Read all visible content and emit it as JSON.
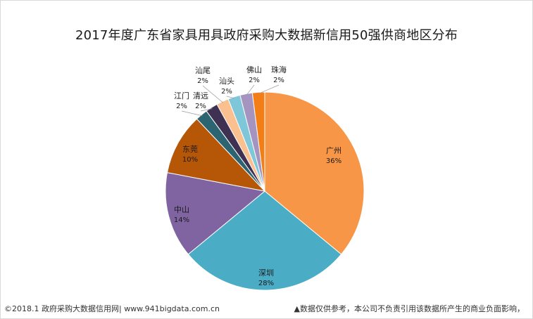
{
  "page": {
    "title": "2017年度广东省家具用具政府采购大数据新信用50强供商地区分布",
    "footer_left": "©2018.1 政府采购大数据信用网| www.941bigdata.com.cn",
    "footer_right_icon": "triangle-up-icon",
    "footer_right": "▲数据仅供参考，本公司不负责引用该数据所产生的商业负面影响，"
  },
  "chart_data": {
    "type": "pie",
    "title": "2017年度广东省家具用具政府采购大数据新信用50强供商地区分布",
    "start": "12 o'clock, clockwise",
    "slices": [
      {
        "label": "广州",
        "value": 36,
        "pct": "36%",
        "color": "#F79646"
      },
      {
        "label": "深圳",
        "value": 28,
        "pct": "28%",
        "color": "#4BACC6"
      },
      {
        "label": "中山",
        "value": 14,
        "pct": "14%",
        "color": "#8064A2"
      },
      {
        "label": "东莞",
        "value": 10,
        "pct": "10%",
        "color": "#B65708"
      },
      {
        "label": "江门",
        "value": 2,
        "pct": "2%",
        "color": "#2C6472"
      },
      {
        "label": "清远",
        "value": 2,
        "pct": "2%",
        "color": "#3F3151"
      },
      {
        "label": "汕尾",
        "value": 2,
        "pct": "2%",
        "color": "#FAC090"
      },
      {
        "label": "汕头",
        "value": 2,
        "pct": "2%",
        "color": "#7FC6D9"
      },
      {
        "label": "佛山",
        "value": 2,
        "pct": "2%",
        "color": "#A593C0"
      },
      {
        "label": "珠海",
        "value": 2,
        "pct": "2%",
        "color": "#F47E16"
      }
    ]
  }
}
